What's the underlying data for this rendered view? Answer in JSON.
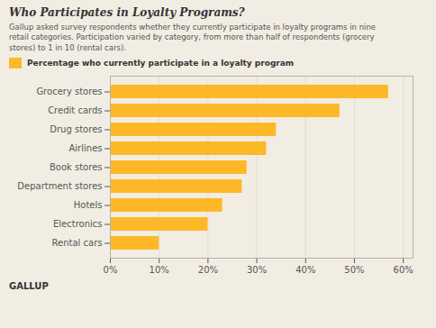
{
  "chart_data": {
    "type": "bar",
    "orientation": "horizontal",
    "title": "Who Participates in Loyalty Programs?",
    "subtitle": "Gallup asked survey respondents whether they currently participate in loyalty programs in nine\nretail categories. Participation varied by category, from more than half of respondents (grocery\nstores) to 1 in 10 (rental cars).",
    "annotations": [
      "GALLUP"
    ],
    "categories": [
      "Grocery stores",
      "Credit cards",
      "Drug stores",
      "Airlines",
      "Book stores",
      "Department stores",
      "Hotels",
      "Electronics",
      "Rental cars"
    ],
    "series": [
      {
        "name": "Percentage who currently participate in a loyalty program",
        "color": "#FDB827",
        "values": [
          0.57,
          0.47,
          0.34,
          0.32,
          0.28,
          0.27,
          0.23,
          0.2,
          0.1
        ]
      }
    ],
    "xlim": [
      0,
      0.62
    ],
    "xticks": [
      {
        "value": 0,
        "label": "0%"
      },
      {
        "value": 0.1,
        "label": "10%"
      },
      {
        "value": 0.2,
        "label": "20%"
      },
      {
        "value": 0.3,
        "label": "30%"
      },
      {
        "value": 0.4,
        "label": "40%"
      },
      {
        "value": 0.5,
        "label": "50%"
      },
      {
        "value": 0.6,
        "label": "60%"
      }
    ],
    "grid": true,
    "legend": "top"
  }
}
